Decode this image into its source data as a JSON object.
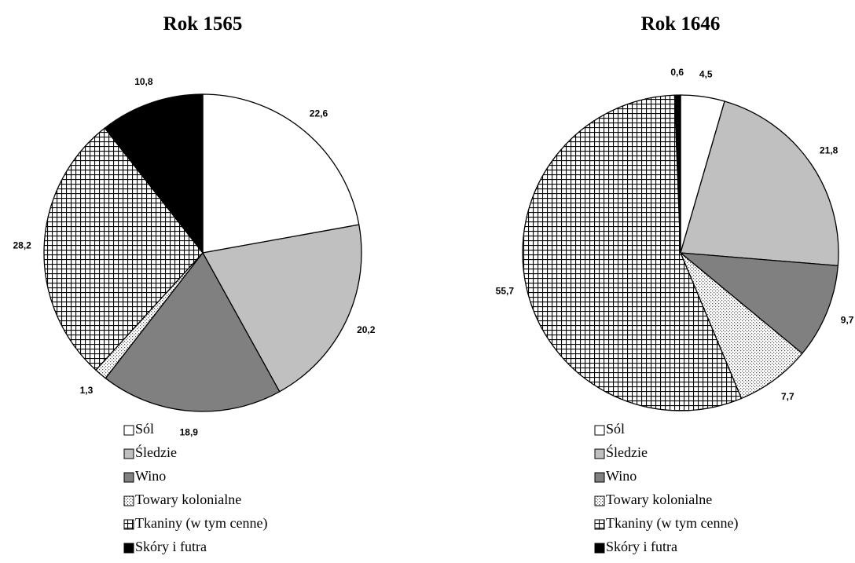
{
  "chart_data": [
    {
      "type": "pie",
      "title": "Rok 1565",
      "categories": [
        "Sól",
        "Śledzie",
        "Wino",
        "Towary kolonialne",
        "Tkaniny (w tym cenne)",
        "Skóry i futra"
      ],
      "values": [
        22.6,
        20.2,
        18.9,
        1.3,
        28.2,
        10.8
      ],
      "value_labels": [
        "22,6",
        "20,2",
        "18,9",
        "1,3",
        "28,2",
        "10,8"
      ],
      "colors": [
        "#ffffff",
        "#c0c0c0",
        "#808080",
        "#ffffff",
        "#ffffff",
        "#000000"
      ],
      "hatches": [
        "none",
        "none",
        "none",
        "dots",
        "grid",
        "none"
      ]
    },
    {
      "type": "pie",
      "title": "Rok 1646",
      "categories": [
        "Sól",
        "Śledzie",
        "Wino",
        "Towary kolonialne",
        "Tkaniny (w tym cenne)",
        "Skóry i futra"
      ],
      "values": [
        4.5,
        21.8,
        9.7,
        7.7,
        55.7,
        0.6
      ],
      "value_labels": [
        "4,5",
        "21,8",
        "9,7",
        "7,7",
        "55,7",
        "0,6"
      ],
      "colors": [
        "#ffffff",
        "#c0c0c0",
        "#808080",
        "#ffffff",
        "#ffffff",
        "#000000"
      ],
      "hatches": [
        "none",
        "none",
        "none",
        "dots",
        "grid",
        "none"
      ]
    }
  ]
}
